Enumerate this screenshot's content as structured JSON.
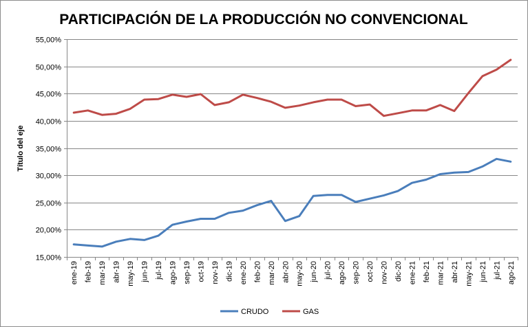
{
  "chart_data": {
    "type": "line",
    "title": "PARTICIPACIÓN DE LA PRODUCCIÓN NO CONVENCIONAL",
    "xlabel": "",
    "ylabel": "Título del eje",
    "ylim": [
      0.15,
      0.55
    ],
    "ytick_step": 0.05,
    "ytick_labels": [
      "15,00%",
      "20,00%",
      "25,00%",
      "30,00%",
      "35,00%",
      "40,00%",
      "45,00%",
      "50,00%",
      "55,00%"
    ],
    "grid": true,
    "legend_position": "bottom",
    "categories": [
      "ene-19",
      "feb-19",
      "mar-19",
      "abr-19",
      "may-19",
      "jun-19",
      "jul-19",
      "ago-19",
      "sep-19",
      "oct-19",
      "nov-19",
      "dic-19",
      "ene-20",
      "feb-20",
      "mar-20",
      "abr-20",
      "may-20",
      "jun-20",
      "jul-20",
      "ago-20",
      "sep-20",
      "oct-20",
      "nov-20",
      "dic-20",
      "ene-21",
      "feb-21",
      "mar-21",
      "abr-21",
      "may-21",
      "jun-21",
      "jul-21",
      "ago-21"
    ],
    "series": [
      {
        "name": "CRUDO",
        "color": "#4a7ebb",
        "values": [
          0.173,
          0.171,
          0.169,
          0.178,
          0.183,
          0.181,
          0.189,
          0.209,
          0.215,
          0.22,
          0.22,
          0.231,
          0.235,
          0.245,
          0.253,
          0.216,
          0.225,
          0.262,
          0.264,
          0.264,
          0.251,
          0.257,
          0.263,
          0.271,
          0.286,
          0.292,
          0.302,
          0.305,
          0.306,
          0.316,
          0.33,
          0.325
        ]
      },
      {
        "name": "GAS",
        "color": "#be4b48",
        "values": [
          0.415,
          0.419,
          0.411,
          0.413,
          0.422,
          0.439,
          0.44,
          0.448,
          0.444,
          0.449,
          0.429,
          0.434,
          0.448,
          0.442,
          0.435,
          0.424,
          0.428,
          0.434,
          0.439,
          0.439,
          0.427,
          0.43,
          0.409,
          0.414,
          0.419,
          0.419,
          0.429,
          0.418,
          0.451,
          0.482,
          0.494,
          0.512
        ]
      }
    ]
  }
}
